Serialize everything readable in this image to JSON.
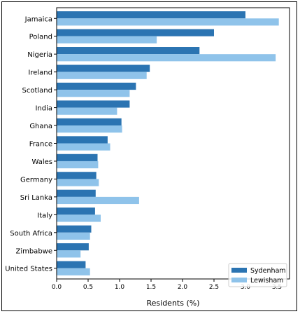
{
  "chart_data": {
    "type": "bar",
    "orientation": "horizontal",
    "categories": [
      "Jamaica",
      "Poland",
      "Nigeria",
      "Ireland",
      "Scotland",
      "India",
      "Ghana",
      "France",
      "Wales",
      "Germany",
      "Sri Lanka",
      "Italy",
      "South Africa",
      "Zimbabwe",
      "United States"
    ],
    "series": [
      {
        "name": "Sydenham",
        "color": "#2b74b2",
        "values": [
          3.0,
          2.5,
          2.27,
          1.48,
          1.26,
          1.16,
          1.03,
          0.81,
          0.65,
          0.63,
          0.62,
          0.61,
          0.55,
          0.51,
          0.46
        ]
      },
      {
        "name": "Lewisham",
        "color": "#8fc3ea",
        "values": [
          3.53,
          1.59,
          3.48,
          1.43,
          1.16,
          0.96,
          1.04,
          0.85,
          0.66,
          0.67,
          1.31,
          0.7,
          0.53,
          0.38,
          0.53
        ]
      }
    ],
    "xlabel": "Residents (%)",
    "ylabel": "",
    "title": "",
    "xlim": [
      0,
      3.7
    ],
    "xticks": [
      "0.0",
      "0.5",
      "1.0",
      "1.5",
      "2.0",
      "2.5",
      "3.0",
      "3.5"
    ],
    "legend_position": "lower-right",
    "grid": false
  }
}
